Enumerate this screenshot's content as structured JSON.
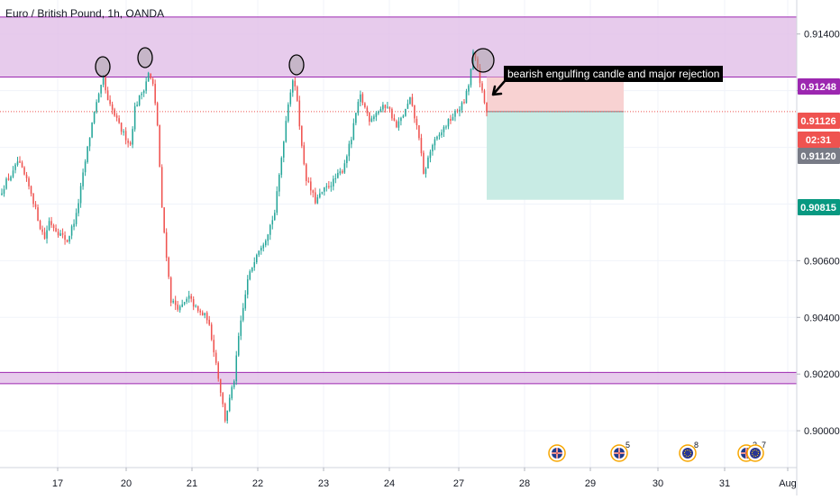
{
  "header": {
    "title": "Euro / British Pound, 1h, OANDA"
  },
  "chart_data": {
    "type": "candlestick",
    "title": "Euro / British Pound, 1h, OANDA",
    "y_ticks": [
      "0.91400",
      "0.91200",
      "0.90600",
      "0.90400",
      "0.90200",
      "0.90000"
    ],
    "ylim": [
      0.8987,
      0.9152
    ],
    "x_ticks": [
      "17",
      "20",
      "21",
      "22",
      "23",
      "24",
      "27",
      "28",
      "29",
      "30",
      "31",
      "Aug"
    ],
    "grid": true,
    "price_badges": [
      {
        "value": "0.91248",
        "color": "#9c27b0"
      },
      {
        "value": "0.91126",
        "color": "#ef5350"
      },
      {
        "value": "02:31",
        "color": "#ef5350"
      },
      {
        "value": "0.91120",
        "color": "#787b86"
      },
      {
        "value": "0.90815",
        "color": "#089981"
      }
    ],
    "zones": [
      {
        "label": "resistance",
        "from": 0.91248,
        "to": 0.9146,
        "color": "#e1bee7"
      },
      {
        "label": "support",
        "from": 0.90166,
        "to": 0.90206,
        "color": "#e1bee7"
      }
    ],
    "position": {
      "side": "short",
      "entry": 0.91126,
      "stop": 0.91248,
      "target": 0.90815,
      "stop_color": "#f8d2d2",
      "target_color": "#c8ebe4"
    },
    "current_price": 0.91126,
    "annotation": "bearish engulfing candle and major rejection",
    "calendar_events": [
      {
        "flag": "gb",
        "count": ""
      },
      {
        "flag": "gb",
        "count": "5"
      },
      {
        "flag": "eu",
        "count": "8"
      },
      {
        "flag": "gb",
        "count": "2"
      },
      {
        "flag": "eu",
        "count": "7"
      }
    ],
    "series_path": [
      [
        0,
        0.9083
      ],
      [
        3,
        0.9088
      ],
      [
        6,
        0.9091
      ],
      [
        8,
        0.9095
      ],
      [
        10,
        0.9092
      ],
      [
        14,
        0.9084
      ],
      [
        18,
        0.9072
      ],
      [
        20,
        0.9068
      ],
      [
        22,
        0.9074
      ],
      [
        26,
        0.907
      ],
      [
        30,
        0.9067
      ],
      [
        34,
        0.9076
      ],
      [
        38,
        0.9095
      ],
      [
        42,
        0.9113
      ],
      [
        44,
        0.9118
      ],
      [
        46,
        0.9124
      ],
      [
        48,
        0.9116
      ],
      [
        50,
        0.9113
      ],
      [
        54,
        0.9106
      ],
      [
        58,
        0.9101
      ],
      [
        60,
        0.9114
      ],
      [
        64,
        0.9121
      ],
      [
        66,
        0.9126
      ],
      [
        68,
        0.9122
      ],
      [
        70,
        0.9108
      ],
      [
        72,
        0.9078
      ],
      [
        76,
        0.9046
      ],
      [
        80,
        0.9043
      ],
      [
        84,
        0.9047
      ],
      [
        88,
        0.9042
      ],
      [
        92,
        0.904
      ],
      [
        94,
        0.9033
      ],
      [
        96,
        0.9024
      ],
      [
        98,
        0.9014
      ],
      [
        100,
        0.9004
      ],
      [
        102,
        0.9011
      ],
      [
        104,
        0.9018
      ],
      [
        106,
        0.9033
      ],
      [
        110,
        0.9053
      ],
      [
        114,
        0.9063
      ],
      [
        118,
        0.9068
      ],
      [
        122,
        0.9077
      ],
      [
        126,
        0.9103
      ],
      [
        128,
        0.9116
      ],
      [
        130,
        0.9124
      ],
      [
        132,
        0.9117
      ],
      [
        134,
        0.91
      ],
      [
        136,
        0.9089
      ],
      [
        138,
        0.9085
      ],
      [
        140,
        0.9081
      ],
      [
        144,
        0.9085
      ],
      [
        148,
        0.9088
      ],
      [
        152,
        0.9092
      ],
      [
        156,
        0.9103
      ],
      [
        158,
        0.9112
      ],
      [
        160,
        0.9118
      ],
      [
        164,
        0.911
      ],
      [
        168,
        0.9113
      ],
      [
        172,
        0.9115
      ],
      [
        176,
        0.9107
      ],
      [
        180,
        0.9113
      ],
      [
        182,
        0.9117
      ],
      [
        186,
        0.9104
      ],
      [
        188,
        0.909
      ],
      [
        190,
        0.9096
      ],
      [
        192,
        0.9101
      ],
      [
        194,
        0.9103
      ],
      [
        198,
        0.9108
      ],
      [
        202,
        0.9112
      ],
      [
        206,
        0.9116
      ],
      [
        208,
        0.9122
      ],
      [
        210,
        0.9133
      ],
      [
        212,
        0.9128
      ],
      [
        214,
        0.9119
      ],
      [
        216,
        0.9112
      ]
    ],
    "candle_count": 216
  }
}
